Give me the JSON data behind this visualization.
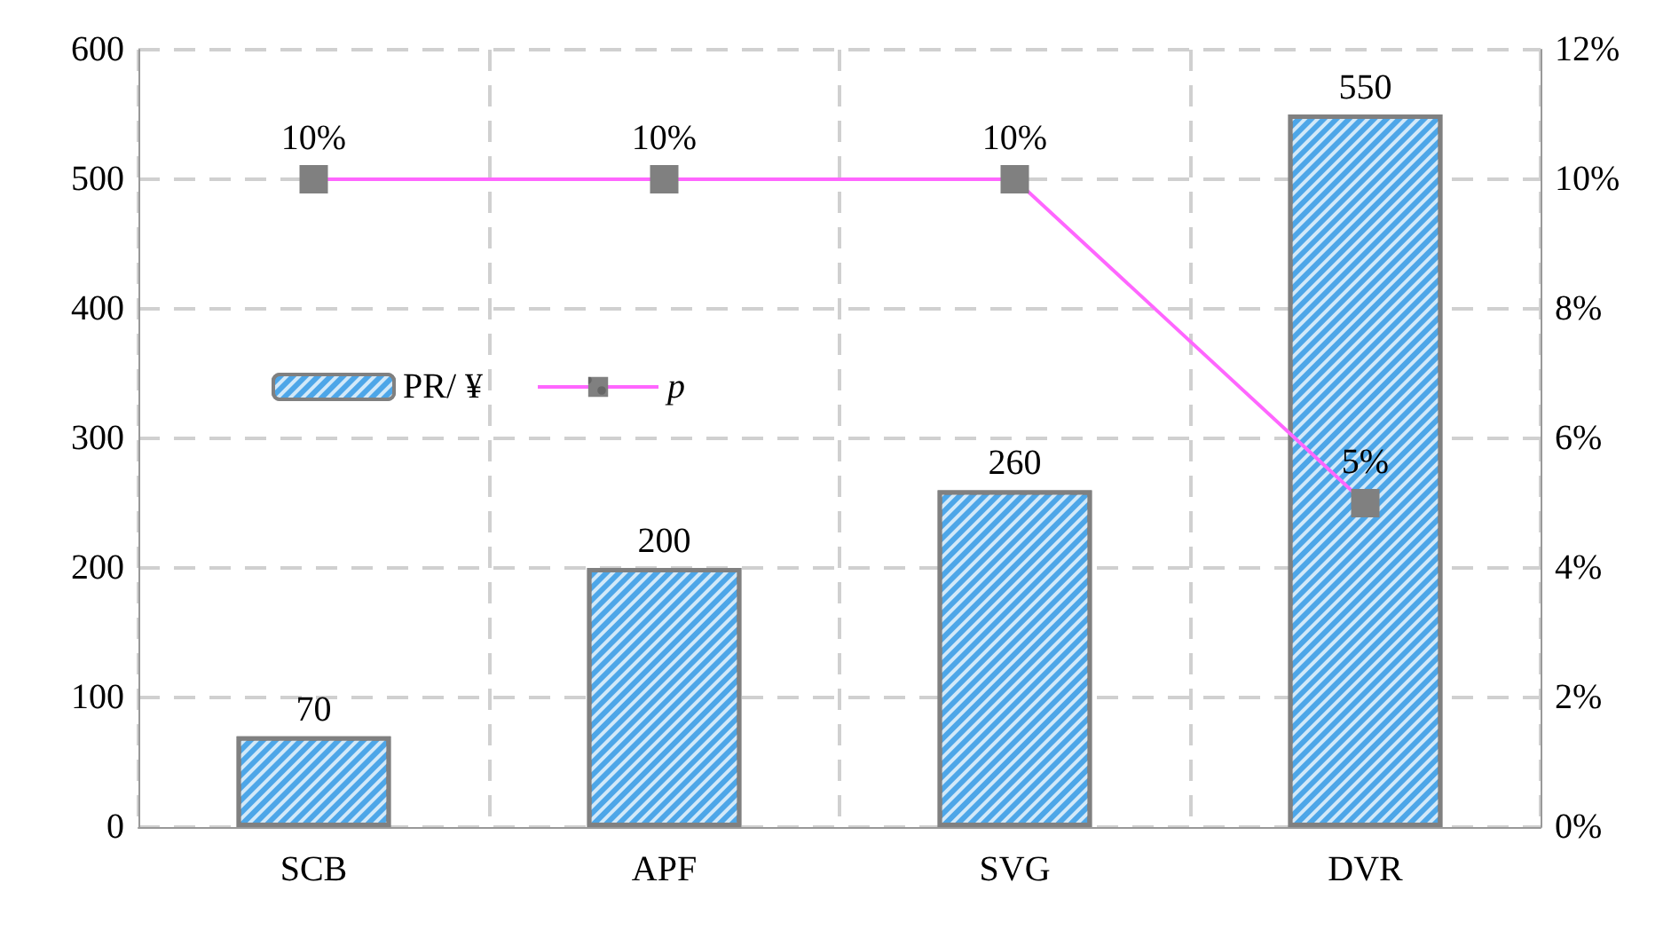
{
  "chart_data": {
    "type": "bar",
    "categories": [
      "SCB",
      "APF",
      "SVG",
      "DVR"
    ],
    "series": [
      {
        "name": "PR/ ¥",
        "color": "#4da6e8",
        "values": [
          70,
          200,
          260,
          550
        ]
      },
      {
        "name": "p",
        "type": "line",
        "axis": "y2",
        "color": "#ff66ff",
        "values": [
          10,
          10,
          10,
          5
        ],
        "value_labels": [
          "10%",
          "10%",
          "10%",
          "5%"
        ]
      }
    ],
    "ylim": [
      0,
      600
    ],
    "yticks": [
      0,
      100,
      200,
      300,
      400,
      500,
      600
    ],
    "y2lim": [
      0,
      12
    ],
    "y2ticks": [
      {
        "value": 0,
        "label": "0%"
      },
      {
        "value": 2,
        "label": "2%"
      },
      {
        "value": 4,
        "label": "4%"
      },
      {
        "value": 6,
        "label": "6%"
      },
      {
        "value": 8,
        "label": "8%"
      },
      {
        "value": 10,
        "label": "10%"
      },
      {
        "value": 12,
        "label": "12%"
      }
    ],
    "data_labels": true,
    "grid": true,
    "legend": "left",
    "marker": "square",
    "line_style": "solid"
  }
}
